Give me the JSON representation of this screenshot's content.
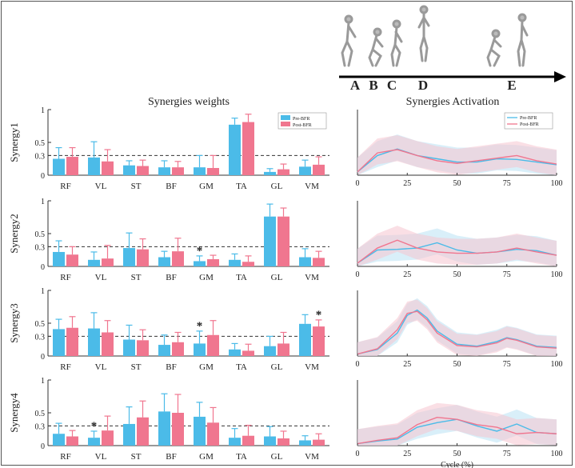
{
  "panel_titles": {
    "weights": "Synergies weights",
    "activation": "Synergies Activation"
  },
  "legend_bar": {
    "pre": "Pre-BFR",
    "post": "Post-BFR"
  },
  "legend_line": {
    "pre": "Pre-BFR",
    "post": "Post-BFR"
  },
  "phase_labels": [
    "A",
    "B",
    "C",
    "D",
    "E"
  ],
  "colors": {
    "pre": "#4bbbe8",
    "post": "#f0768f",
    "pre_band": "#b9e2f4",
    "post_band": "#f6c5d0",
    "dashed": "#333333"
  },
  "chart_data": [
    {
      "type": "bar",
      "ylabel": "Synergy1",
      "categories": [
        "RF",
        "VL",
        "ST",
        "BF",
        "GM",
        "TA",
        "GL",
        "VM"
      ],
      "ylim": [
        0,
        1
      ],
      "yticks": [
        "0",
        "0.3",
        "0.5",
        "1"
      ],
      "ytick_values": [
        0,
        0.3,
        0.5,
        1
      ],
      "threshold": 0.3,
      "series": [
        {
          "name": "Pre-BFR",
          "values": [
            0.25,
            0.27,
            0.15,
            0.12,
            0.12,
            0.77,
            0.05,
            0.13
          ],
          "err": [
            0.17,
            0.24,
            0.07,
            0.1,
            0.18,
            0.1,
            0.05,
            0.1
          ]
        },
        {
          "name": "Post-BFR",
          "values": [
            0.28,
            0.21,
            0.14,
            0.12,
            0.11,
            0.81,
            0.09,
            0.16
          ],
          "err": [
            0.14,
            0.18,
            0.09,
            0.09,
            0.19,
            0.12,
            0.08,
            0.12
          ]
        }
      ],
      "significant": []
    },
    {
      "type": "bar",
      "ylabel": "Synergy2",
      "categories": [
        "RF",
        "VL",
        "ST",
        "BF",
        "GM",
        "TA",
        "GL",
        "VM"
      ],
      "ylim": [
        0,
        1
      ],
      "yticks": [
        "0",
        "0.3",
        "0.5",
        "1"
      ],
      "ytick_values": [
        0,
        0.3,
        0.5,
        1
      ],
      "threshold": 0.3,
      "series": [
        {
          "name": "Pre-BFR",
          "values": [
            0.22,
            0.1,
            0.28,
            0.14,
            0.08,
            0.1,
            0.76,
            0.14
          ],
          "err": [
            0.17,
            0.12,
            0.23,
            0.09,
            0.08,
            0.09,
            0.19,
            0.13
          ]
        },
        {
          "name": "Post-BFR",
          "values": [
            0.18,
            0.12,
            0.26,
            0.23,
            0.11,
            0.07,
            0.76,
            0.13
          ],
          "err": [
            0.12,
            0.2,
            0.16,
            0.2,
            0.06,
            0.09,
            0.13,
            0.1
          ]
        }
      ],
      "significant": [
        {
          "category": "GM",
          "series": "Pre-BFR"
        }
      ]
    },
    {
      "type": "bar",
      "ylabel": "Synergy3",
      "categories": [
        "RF",
        "VL",
        "ST",
        "BF",
        "GM",
        "TA",
        "GL",
        "VM"
      ],
      "ylim": [
        0,
        1
      ],
      "yticks": [
        "0",
        "0.3",
        "0.5",
        "1"
      ],
      "ytick_values": [
        0,
        0.3,
        0.5,
        1
      ],
      "threshold": 0.3,
      "series": [
        {
          "name": "Pre-BFR",
          "values": [
            0.41,
            0.42,
            0.25,
            0.17,
            0.19,
            0.1,
            0.15,
            0.49
          ],
          "err": [
            0.15,
            0.24,
            0.22,
            0.15,
            0.19,
            0.09,
            0.15,
            0.14
          ]
        },
        {
          "name": "Post-BFR",
          "values": [
            0.43,
            0.36,
            0.24,
            0.21,
            0.32,
            0.08,
            0.19,
            0.45
          ],
          "err": [
            0.17,
            0.18,
            0.16,
            0.15,
            0.22,
            0.1,
            0.17,
            0.1
          ]
        }
      ],
      "significant": [
        {
          "category": "GM",
          "series": "Pre-BFR"
        },
        {
          "category": "VM",
          "series": "Post-BFR"
        }
      ]
    },
    {
      "type": "bar",
      "ylabel": "Synergy4",
      "categories": [
        "RF",
        "VL",
        "ST",
        "BF",
        "GM",
        "TA",
        "GL",
        "VM"
      ],
      "ylim": [
        0,
        1
      ],
      "yticks": [
        "0",
        "0.3",
        "0.5",
        "1"
      ],
      "ytick_values": [
        0,
        0.3,
        0.5,
        1
      ],
      "threshold": 0.3,
      "series": [
        {
          "name": "Pre-BFR",
          "values": [
            0.18,
            0.12,
            0.33,
            0.52,
            0.44,
            0.12,
            0.14,
            0.08
          ],
          "err": [
            0.16,
            0.1,
            0.26,
            0.27,
            0.22,
            0.14,
            0.15,
            0.07
          ]
        },
        {
          "name": "Post-BFR",
          "values": [
            0.14,
            0.23,
            0.43,
            0.5,
            0.35,
            0.15,
            0.11,
            0.09
          ],
          "err": [
            0.09,
            0.22,
            0.25,
            0.28,
            0.23,
            0.16,
            0.11,
            0.09
          ]
        }
      ],
      "significant": [
        {
          "category": "VL",
          "series": "Pre-BFR"
        }
      ]
    },
    {
      "type": "line",
      "xlabel": "",
      "xlim": [
        0,
        100
      ],
      "xticks": [
        0,
        25,
        50,
        75,
        100
      ],
      "x": [
        0,
        10,
        20,
        30,
        40,
        50,
        60,
        70,
        80,
        90,
        100
      ],
      "series": [
        {
          "name": "Pre-BFR",
          "values": [
            0.05,
            0.3,
            0.4,
            0.3,
            0.25,
            0.2,
            0.2,
            0.25,
            0.24,
            0.2,
            0.16
          ],
          "band": 0.22
        },
        {
          "name": "Post-BFR",
          "values": [
            0.05,
            0.34,
            0.39,
            0.3,
            0.22,
            0.18,
            0.22,
            0.26,
            0.3,
            0.22,
            0.17
          ],
          "band": 0.22
        }
      ]
    },
    {
      "type": "line",
      "xlabel": "",
      "xlim": [
        0,
        100
      ],
      "xticks": [
        0,
        25,
        50,
        75,
        100
      ],
      "x": [
        0,
        10,
        20,
        30,
        40,
        50,
        60,
        70,
        80,
        90,
        100
      ],
      "series": [
        {
          "name": "Pre-BFR",
          "values": [
            0.05,
            0.25,
            0.26,
            0.28,
            0.36,
            0.25,
            0.2,
            0.22,
            0.26,
            0.24,
            0.17
          ],
          "band": 0.22
        },
        {
          "name": "Post-BFR",
          "values": [
            0.05,
            0.28,
            0.4,
            0.28,
            0.22,
            0.2,
            0.2,
            0.22,
            0.28,
            0.22,
            0.17
          ],
          "band": 0.22
        }
      ]
    },
    {
      "type": "line",
      "xlabel": "",
      "xlim": [
        0,
        100
      ],
      "xticks": [
        0,
        25,
        50,
        75,
        100
      ],
      "x": [
        0,
        10,
        20,
        25,
        30,
        35,
        40,
        50,
        60,
        70,
        75,
        80,
        90,
        100
      ],
      "series": [
        {
          "name": "Pre-BFR",
          "values": [
            0.03,
            0.1,
            0.35,
            0.62,
            0.7,
            0.58,
            0.38,
            0.18,
            0.15,
            0.22,
            0.28,
            0.25,
            0.15,
            0.13
          ],
          "band": 0.18
        },
        {
          "name": "Post-BFR",
          "values": [
            0.03,
            0.11,
            0.4,
            0.65,
            0.68,
            0.55,
            0.35,
            0.16,
            0.14,
            0.2,
            0.27,
            0.24,
            0.14,
            0.12
          ],
          "band": 0.18
        }
      ]
    },
    {
      "type": "line",
      "xlabel": "Cycle (%)",
      "xlim": [
        0,
        100
      ],
      "xticks": [
        0,
        25,
        50,
        75,
        100
      ],
      "x": [
        0,
        10,
        20,
        30,
        40,
        50,
        60,
        70,
        80,
        90,
        100
      ],
      "series": [
        {
          "name": "Pre-BFR",
          "values": [
            0.03,
            0.07,
            0.1,
            0.28,
            0.35,
            0.4,
            0.3,
            0.22,
            0.33,
            0.2,
            0.18
          ],
          "band": 0.22
        },
        {
          "name": "Post-BFR",
          "values": [
            0.03,
            0.08,
            0.12,
            0.32,
            0.43,
            0.4,
            0.32,
            0.28,
            0.18,
            0.2,
            0.18
          ],
          "band": 0.22
        }
      ]
    }
  ]
}
